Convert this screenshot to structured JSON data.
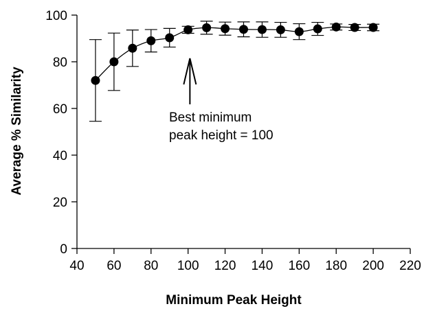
{
  "chart_data": {
    "type": "line",
    "title": "",
    "xlabel": "Minimum Peak Height",
    "ylabel": "Average % Similarity",
    "xlim": [
      40,
      220
    ],
    "ylim": [
      0,
      100
    ],
    "x_ticks": [
      40,
      60,
      80,
      100,
      120,
      140,
      160,
      180,
      200,
      220
    ],
    "y_ticks": [
      0,
      20,
      40,
      60,
      80,
      100
    ],
    "grid": false,
    "legend": "none",
    "series": [
      {
        "x": [
          50,
          60,
          70,
          80,
          90,
          100,
          110,
          120,
          130,
          140,
          150,
          160,
          170,
          180,
          190,
          200
        ],
        "y": [
          72,
          80,
          85.8,
          89,
          90.3,
          93.7,
          94.6,
          94.2,
          93.9,
          93.8,
          93.7,
          92.9,
          94.1,
          94.9,
          94.7,
          94.7
        ],
        "error": [
          17.5,
          12.3,
          7.8,
          4.8,
          4.0,
          1.5,
          2.8,
          2.8,
          3.2,
          3.3,
          3.2,
          3.4,
          2.8,
          1.3,
          1.3,
          1.4
        ],
        "color": "#000000"
      }
    ],
    "annotations": [
      {
        "line1": "Best minimum",
        "line2": "peak height = 100",
        "arrow_x": 101
      }
    ]
  }
}
